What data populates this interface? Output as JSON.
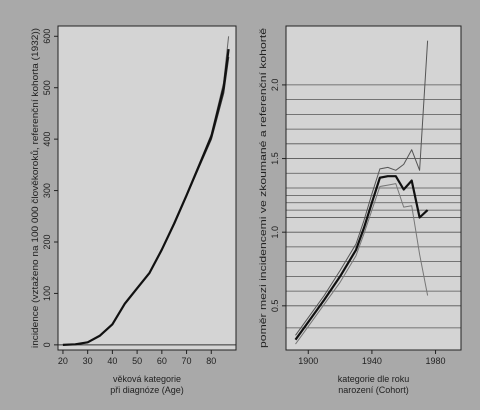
{
  "chart_data": [
    {
      "type": "line",
      "xlabel": "věková kategorie",
      "xlabel_line2": "při diagnóze (Age)",
      "ylabel": "incidence (vztaženo na 100 000 člověkoroků, referenční kohorta (1932))",
      "xlim": [
        18,
        90
      ],
      "ylim": [
        -10,
        620
      ],
      "x_ticks": [
        20,
        30,
        40,
        50,
        60,
        70,
        80
      ],
      "y_ticks": [
        0,
        100,
        200,
        300,
        400,
        500,
        600
      ],
      "grid": false,
      "series": [
        {
          "color": "#333333",
          "width": 1.4,
          "x": [
            20,
            25,
            30,
            35,
            40,
            45,
            50,
            55,
            60,
            65,
            70,
            75,
            80,
            85,
            87
          ],
          "y": [
            0,
            1,
            5,
            18,
            40,
            80,
            110,
            140,
            185,
            235,
            290,
            345,
            400,
            490,
            560
          ]
        },
        {
          "color": "#666666",
          "width": 1.0,
          "x": [
            20,
            25,
            30,
            35,
            40,
            45,
            50,
            55,
            60,
            65,
            70,
            75,
            80,
            85,
            87
          ],
          "y": [
            0,
            1,
            5,
            18,
            40,
            80,
            110,
            140,
            186,
            237,
            292,
            350,
            410,
            510,
            600
          ]
        },
        {
          "color": "#111111",
          "width": 2.2,
          "x": [
            20,
            25,
            30,
            35,
            40,
            45,
            50,
            55,
            60,
            65,
            70,
            75,
            80,
            85,
            87
          ],
          "y": [
            0,
            1,
            5,
            18,
            40,
            80,
            110,
            140,
            185,
            236,
            291,
            348,
            405,
            500,
            575
          ]
        }
      ]
    },
    {
      "type": "line",
      "xlabel": "kategorie dle roku",
      "xlabel_line2": "narození (Cohort)",
      "ylabel": "poměr mezi incidencemi ve zkoumané a referenční kohortě",
      "xlim": [
        1886,
        1996
      ],
      "ylim": [
        0.2,
        2.4
      ],
      "x_ticks": [
        1900,
        1940,
        1980
      ],
      "y_ticks": [
        0.5,
        1.0,
        1.5,
        2.0
      ],
      "y_tick_labels": [
        "0.5",
        "1.0",
        "1.5",
        "2.0"
      ],
      "grid": true,
      "gridlines_y": [
        0.35,
        0.5,
        0.6,
        0.7,
        0.8,
        0.9,
        1.0,
        1.1,
        1.15,
        1.2,
        1.25,
        1.3,
        1.4,
        1.5,
        1.6,
        1.7,
        1.8,
        1.9,
        2.0
      ],
      "series": [
        {
          "color": "#555555",
          "width": 1.0,
          "x": [
            1892,
            1900,
            1910,
            1920,
            1930,
            1935,
            1940,
            1945,
            1950,
            1955,
            1960,
            1965,
            1970,
            1975
          ],
          "y": [
            0.3,
            0.42,
            0.57,
            0.74,
            0.92,
            1.08,
            1.26,
            1.43,
            1.44,
            1.42,
            1.46,
            1.56,
            1.42,
            2.3
          ]
        },
        {
          "color": "#111111",
          "width": 2.2,
          "x": [
            1892,
            1900,
            1910,
            1920,
            1930,
            1935,
            1940,
            1945,
            1950,
            1955,
            1960,
            1965,
            1970,
            1975
          ],
          "y": [
            0.27,
            0.39,
            0.54,
            0.7,
            0.88,
            1.03,
            1.2,
            1.37,
            1.38,
            1.38,
            1.29,
            1.35,
            1.1,
            1.15
          ]
        },
        {
          "color": "#777777",
          "width": 1.0,
          "x": [
            1892,
            1900,
            1910,
            1920,
            1930,
            1935,
            1940,
            1945,
            1950,
            1955,
            1960,
            1965,
            1970,
            1975
          ],
          "y": [
            0.24,
            0.36,
            0.51,
            0.66,
            0.84,
            0.99,
            1.15,
            1.31,
            1.32,
            1.33,
            1.17,
            1.18,
            0.85,
            0.57
          ]
        }
      ]
    }
  ]
}
